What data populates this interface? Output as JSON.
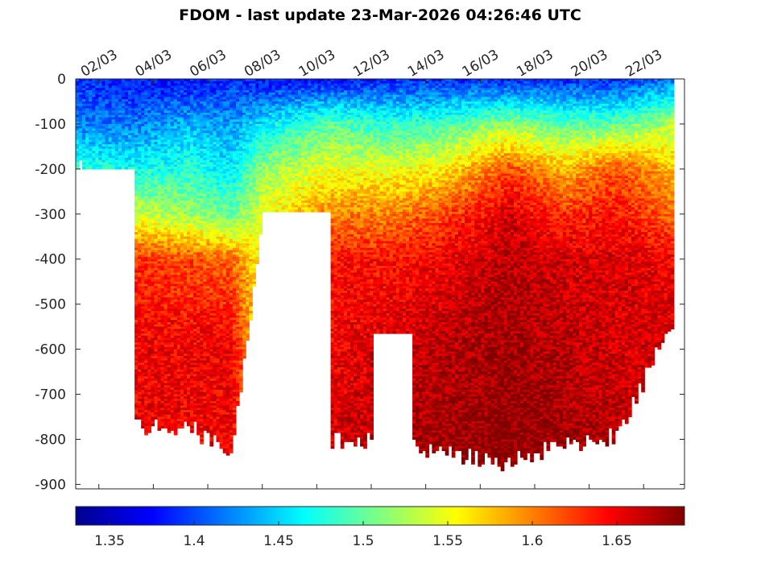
{
  "chart_data": {
    "type": "heatmap",
    "title": "FDOM - last update 23-Mar-2026 04:26:46 UTC",
    "xlabel": "",
    "ylabel": "",
    "x_tick_labels": [
      "02/03",
      "04/03",
      "06/03",
      "08/03",
      "10/03",
      "12/03",
      "14/03",
      "16/03",
      "18/03",
      "20/03",
      "22/03"
    ],
    "x_ticks_day": [
      2,
      4,
      6,
      8,
      10,
      12,
      14,
      16,
      18,
      20,
      22
    ],
    "xlim_day": [
      1.15,
      23.5
    ],
    "y_tick_labels": [
      "0",
      "-100",
      "-200",
      "-300",
      "-400",
      "-500",
      "-600",
      "-700",
      "-800",
      "-900"
    ],
    "y_ticks": [
      0,
      -100,
      -200,
      -300,
      -400,
      -500,
      -600,
      -700,
      -800,
      -900
    ],
    "ylim": [
      -910,
      0
    ],
    "colorbar": {
      "colormap": "jet",
      "clim": [
        1.33,
        1.69
      ],
      "tick_values": [
        1.35,
        1.4,
        1.45,
        1.5,
        1.55,
        1.6,
        1.65
      ],
      "tick_labels": [
        "1.35",
        "1.4",
        "1.45",
        "1.5",
        "1.55",
        "1.6",
        "1.65"
      ]
    },
    "profiles": [
      {
        "day": 1.3,
        "max_depth": -195,
        "fdom": [
          [
            0,
            1.39
          ],
          [
            -100,
            1.42
          ],
          [
            -195,
            1.48
          ]
        ]
      },
      {
        "day": 3.3,
        "max_depth": -770,
        "fdom": [
          [
            0,
            1.38
          ],
          [
            -100,
            1.42
          ],
          [
            -200,
            1.47
          ],
          [
            -300,
            1.54
          ],
          [
            -400,
            1.63
          ],
          [
            -600,
            1.65
          ],
          [
            -770,
            1.65
          ]
        ]
      },
      {
        "day": 5.3,
        "max_depth": -770,
        "fdom": [
          [
            0,
            1.38
          ],
          [
            -100,
            1.44
          ],
          [
            -200,
            1.48
          ],
          [
            -300,
            1.52
          ],
          [
            -400,
            1.62
          ],
          [
            -600,
            1.65
          ],
          [
            -770,
            1.65
          ]
        ]
      },
      {
        "day": 6.8,
        "max_depth": -830,
        "fdom": [
          [
            0,
            1.39
          ],
          [
            -100,
            1.43
          ],
          [
            -200,
            1.46
          ],
          [
            -300,
            1.5
          ],
          [
            -400,
            1.61
          ],
          [
            -600,
            1.65
          ],
          [
            -830,
            1.65
          ]
        ]
      },
      {
        "day": 8.0,
        "max_depth": -300,
        "fdom": [
          [
            0,
            1.38
          ],
          [
            -100,
            1.46
          ],
          [
            -200,
            1.52
          ],
          [
            -300,
            1.55
          ]
        ]
      },
      {
        "day": 10.5,
        "max_depth": -800,
        "fdom": [
          [
            0,
            1.38
          ],
          [
            -100,
            1.5
          ],
          [
            -200,
            1.55
          ],
          [
            -300,
            1.6
          ],
          [
            -400,
            1.64
          ],
          [
            -600,
            1.65
          ],
          [
            -800,
            1.66
          ]
        ]
      },
      {
        "day": 12.5,
        "max_depth": -800,
        "fdom": [
          [
            0,
            1.39
          ],
          [
            -100,
            1.48
          ],
          [
            -200,
            1.55
          ],
          [
            -300,
            1.6
          ],
          [
            -400,
            1.64
          ],
          [
            -600,
            1.66
          ],
          [
            -800,
            1.67
          ]
        ]
      },
      {
        "day": 14.5,
        "max_depth": -830,
        "fdom": [
          [
            0,
            1.39
          ],
          [
            -100,
            1.49
          ],
          [
            -200,
            1.56
          ],
          [
            -300,
            1.62
          ],
          [
            -400,
            1.65
          ],
          [
            -600,
            1.67
          ],
          [
            -830,
            1.68
          ]
        ]
      },
      {
        "day": 17.0,
        "max_depth": -850,
        "fdom": [
          [
            0,
            1.39
          ],
          [
            -100,
            1.52
          ],
          [
            -200,
            1.62
          ],
          [
            -300,
            1.66
          ],
          [
            -400,
            1.67
          ],
          [
            -600,
            1.68
          ],
          [
            -850,
            1.69
          ]
        ]
      },
      {
        "day": 19.0,
        "max_depth": -810,
        "fdom": [
          [
            0,
            1.39
          ],
          [
            -100,
            1.5
          ],
          [
            -200,
            1.58
          ],
          [
            -300,
            1.63
          ],
          [
            -400,
            1.66
          ],
          [
            -600,
            1.67
          ],
          [
            -810,
            1.68
          ]
        ]
      },
      {
        "day": 21.0,
        "max_depth": -790,
        "fdom": [
          [
            0,
            1.39
          ],
          [
            -100,
            1.5
          ],
          [
            -200,
            1.62
          ],
          [
            -300,
            1.64
          ],
          [
            -400,
            1.66
          ],
          [
            -600,
            1.66
          ],
          [
            -790,
            1.67
          ]
        ]
      },
      {
        "day": 22.9,
        "max_depth": -540,
        "fdom": [
          [
            0,
            1.42
          ],
          [
            -100,
            1.53
          ],
          [
            -200,
            1.58
          ],
          [
            -300,
            1.61
          ],
          [
            -400,
            1.65
          ],
          [
            -540,
            1.66
          ]
        ]
      }
    ],
    "missing_data_gaps": [
      {
        "day_start": 1.15,
        "day_end": 3.25,
        "depth_below": -195
      },
      {
        "day_start": 7.9,
        "day_end": 10.4,
        "depth_below": -292
      },
      {
        "day_start": 12.0,
        "day_end": 13.4,
        "depth_below": -560
      }
    ]
  }
}
